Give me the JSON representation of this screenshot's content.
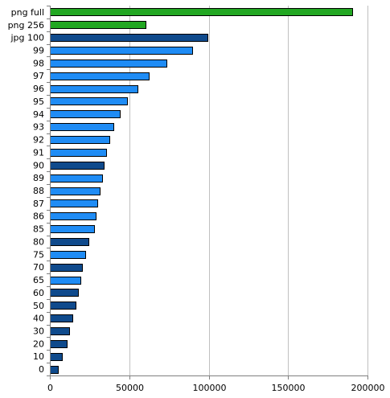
{
  "chart_data": {
    "type": "bar",
    "orientation": "horizontal",
    "title": "",
    "xlabel": "",
    "ylabel": "",
    "xlim": [
      0,
      200000
    ],
    "x_ticks": [
      0,
      50000,
      100000,
      150000,
      200000
    ],
    "x_tick_labels": [
      "0",
      "50000",
      "100000",
      "150000",
      "200000"
    ],
    "grid": "vertical",
    "legend": "none",
    "categories": [
      "png full",
      "png 256",
      "jpg 100",
      "99",
      "98",
      "97",
      "96",
      "95",
      "94",
      "93",
      "92",
      "91",
      "90",
      "89",
      "88",
      "87",
      "86",
      "85",
      "80",
      "75",
      "70",
      "65",
      "60",
      "50",
      "40",
      "30",
      "20",
      "10",
      "0"
    ],
    "values": [
      190500,
      60000,
      99000,
      89500,
      73500,
      62500,
      55000,
      48500,
      44000,
      40000,
      37500,
      35500,
      34000,
      33000,
      31500,
      30000,
      29000,
      28000,
      24500,
      22500,
      20500,
      19000,
      17500,
      16000,
      14000,
      12000,
      10500,
      7500,
      5000
    ],
    "bar_colors": [
      "#22a722",
      "#22a722",
      "#0f4a8c",
      "#1f8cf5",
      "#1f8cf5",
      "#1f8cf5",
      "#1f8cf5",
      "#1f8cf5",
      "#1f8cf5",
      "#1f8cf5",
      "#1f8cf5",
      "#1f8cf5",
      "#0f4a8c",
      "#1f8cf5",
      "#1f8cf5",
      "#1f8cf5",
      "#1f8cf5",
      "#1f8cf5",
      "#0f4a8c",
      "#1f8cf5",
      "#0f4a8c",
      "#1f8cf5",
      "#0f4a8c",
      "#0f4a8c",
      "#0f4a8c",
      "#0f4a8c",
      "#0f4a8c",
      "#0f4a8c",
      "#0f4a8c"
    ],
    "colors": {
      "grid": "#c0c0c0",
      "axis": "#808080",
      "bar_outline": "#000000"
    }
  }
}
